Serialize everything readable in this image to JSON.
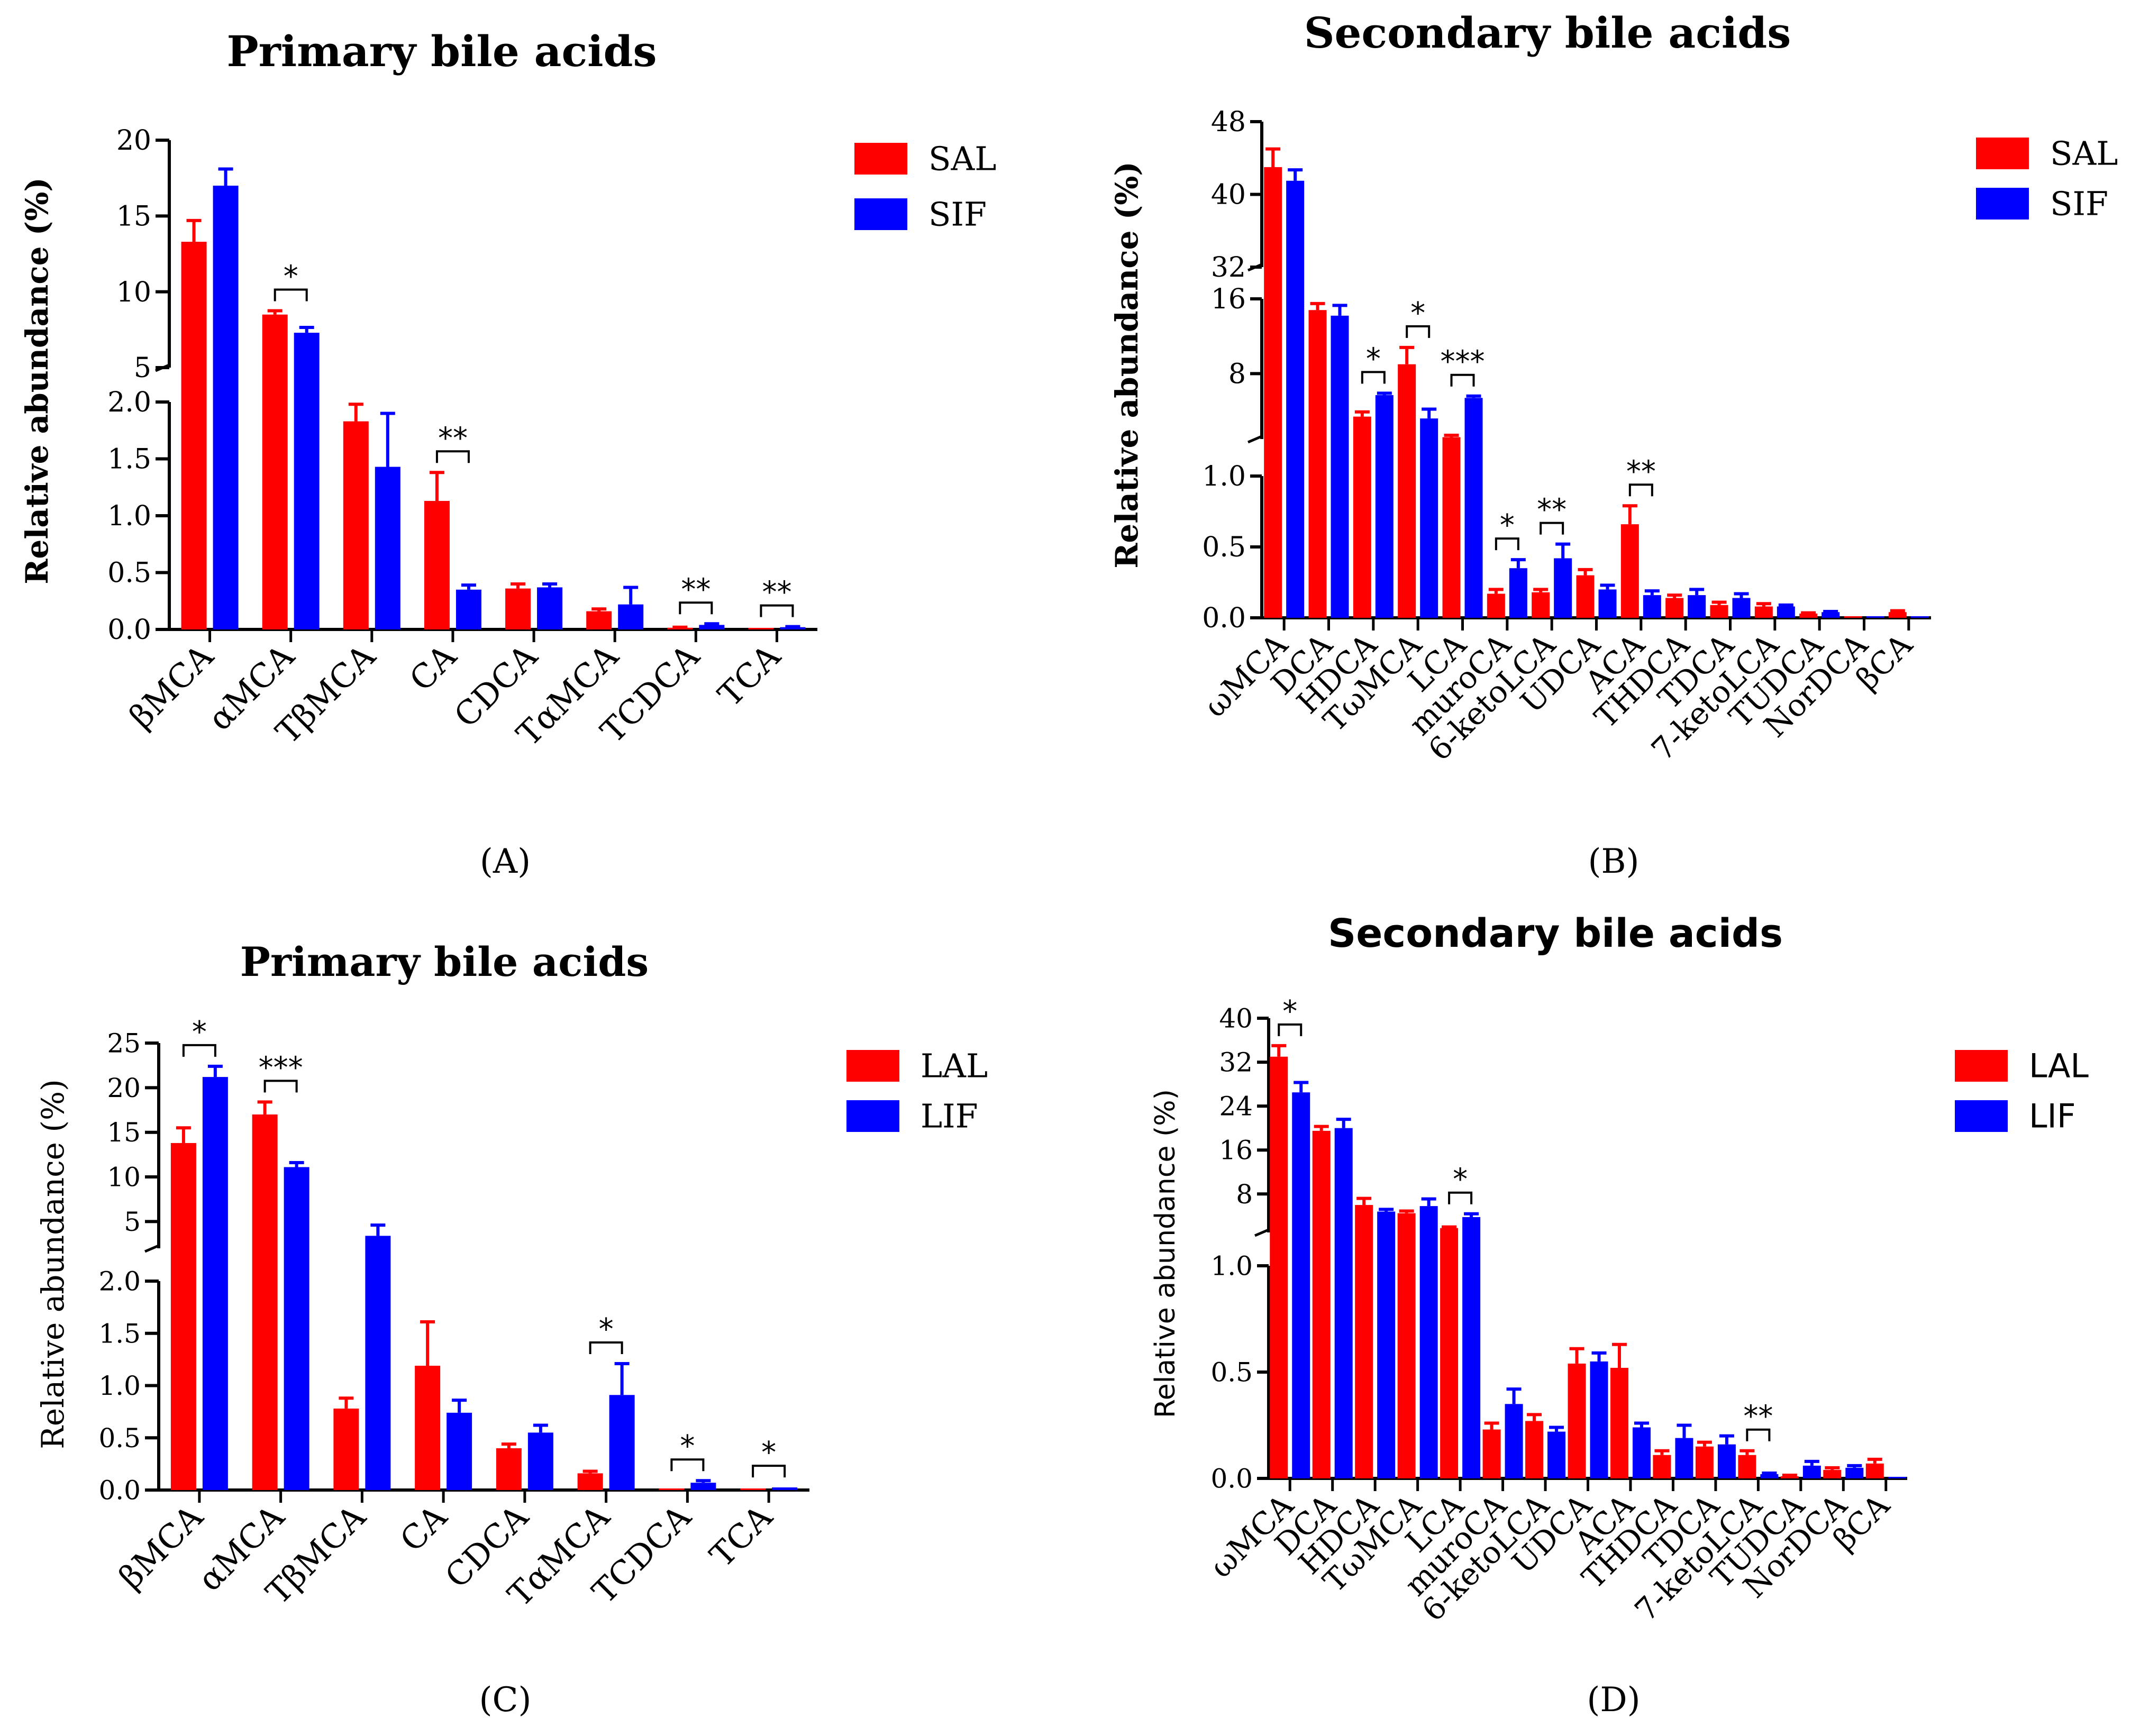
{
  "colors": {
    "red": "#ff0000",
    "blue": "#0000ff",
    "axis": "#000000"
  },
  "chart_data": [
    {
      "type": "bar",
      "panel_label": "(A)",
      "title": "Primary bile acids",
      "ylabel": "Relative abundance (%)",
      "xlabel": "",
      "categories": [
        "βMCA",
        "αMCA",
        "TβMCA",
        "CA",
        "CDCA",
        "TαMCA",
        "TCDCA",
        "TCA"
      ],
      "series": [
        {
          "name": "SAL",
          "color": "#ff0000",
          "values": [
            13.3,
            8.5,
            1.83,
            1.13,
            0.36,
            0.16,
            0.015,
            0.008
          ],
          "errors": [
            1.4,
            0.25,
            0.15,
            0.25,
            0.04,
            0.02,
            0.005,
            0.003
          ]
        },
        {
          "name": "SIF",
          "color": "#0000ff",
          "values": [
            17.0,
            7.3,
            1.43,
            0.35,
            0.37,
            0.22,
            0.04,
            0.02
          ],
          "errors": [
            1.1,
            0.35,
            0.47,
            0.04,
            0.03,
            0.15,
            0.01,
            0.005
          ]
        }
      ],
      "ylim": [
        0,
        20
      ],
      "axis_segments": [
        {
          "range": [
            0,
            2.0
          ],
          "ticks": [
            "0.0",
            "0.5",
            "1.0",
            "1.5",
            "2.0"
          ]
        },
        {
          "range": [
            5,
            20
          ],
          "ticks": [
            "5",
            "10",
            "15",
            "20"
          ]
        }
      ],
      "legend": "right",
      "significance": [
        {
          "category": "αMCA",
          "label": "*"
        },
        {
          "category": "CA",
          "label": "**"
        },
        {
          "category": "TCDCA",
          "label": "**"
        },
        {
          "category": "TCA",
          "label": "**"
        }
      ]
    },
    {
      "type": "bar",
      "panel_label": "(B)",
      "title": "Secondary bile acids",
      "ylabel": "Relative abundance (%)",
      "xlabel": "",
      "categories": [
        "ωMCA",
        "DCA",
        "HDCA",
        "TωMCA",
        "LCA",
        "muroCA",
        "6-ketoLCA",
        "UDCA",
        "ACA",
        "THDCA",
        "TDCA",
        "7-ketoLCA",
        "TUDCA",
        "NorDCA",
        "βCA"
      ],
      "series": [
        {
          "name": "SAL",
          "color": "#ff0000",
          "values": [
            43.0,
            14.8,
            3.4,
            9.0,
            1.2,
            0.17,
            0.18,
            0.3,
            0.66,
            0.14,
            0.09,
            0.08,
            0.03,
            0.005,
            0.04
          ],
          "errors": [
            2.0,
            0.7,
            0.5,
            1.8,
            0.2,
            0.03,
            0.02,
            0.04,
            0.13,
            0.02,
            0.02,
            0.02,
            0.005,
            0.002,
            0.01
          ]
        },
        {
          "name": "SIF",
          "color": "#0000ff",
          "values": [
            41.5,
            14.2,
            5.7,
            3.2,
            5.4,
            0.35,
            0.42,
            0.2,
            0.16,
            0.16,
            0.14,
            0.08,
            0.04,
            0.005,
            0.005
          ],
          "errors": [
            1.2,
            1.1,
            0.2,
            1.0,
            0.2,
            0.06,
            0.1,
            0.03,
            0.03,
            0.04,
            0.03,
            0.01,
            0.005,
            0.002,
            0.002
          ]
        }
      ],
      "ylim": [
        0,
        48
      ],
      "axis_segments": [
        {
          "range": [
            0,
            1.0
          ],
          "ticks": [
            "0.0",
            "0.5",
            "1.0"
          ]
        },
        {
          "range": [
            1,
            16
          ],
          "ticks": [
            "8",
            "16"
          ]
        },
        {
          "range": [
            32,
            48
          ],
          "ticks": [
            "32",
            "40",
            "48"
          ]
        }
      ],
      "legend": "right",
      "significance": [
        {
          "category": "HDCA",
          "label": "*"
        },
        {
          "category": "TωMCA",
          "label": "*"
        },
        {
          "category": "LCA",
          "label": "***"
        },
        {
          "category": "muroCA",
          "label": "*"
        },
        {
          "category": "6-ketoLCA",
          "label": "**"
        },
        {
          "category": "ACA",
          "label": "**"
        }
      ]
    },
    {
      "type": "bar",
      "panel_label": "(C)",
      "title": "Primary bile acids",
      "ylabel": "Relative abundance (%)",
      "xlabel": "",
      "categories": [
        "βMCA",
        "αMCA",
        "TβMCA",
        "CA",
        "CDCA",
        "TαMCA",
        "TCDCA",
        "TCA"
      ],
      "series": [
        {
          "name": "LAL",
          "color": "#ff0000",
          "values": [
            13.8,
            17.0,
            0.78,
            1.19,
            0.4,
            0.16,
            0.015,
            0.008
          ],
          "errors": [
            1.7,
            1.4,
            0.1,
            0.42,
            0.04,
            0.02,
            0.005,
            0.003
          ]
        },
        {
          "name": "LIF",
          "color": "#0000ff",
          "values": [
            21.2,
            11.1,
            3.4,
            0.74,
            0.55,
            0.91,
            0.07,
            0.025
          ],
          "errors": [
            1.2,
            0.5,
            1.2,
            0.12,
            0.07,
            0.3,
            0.02,
            0.005
          ]
        }
      ],
      "ylim": [
        0,
        25
      ],
      "axis_segments": [
        {
          "range": [
            0,
            2.0
          ],
          "ticks": [
            "0.0",
            "0.5",
            "1.0",
            "1.5",
            "2.0"
          ]
        },
        {
          "range": [
            2,
            25
          ],
          "ticks": [
            "5",
            "10",
            "15",
            "20",
            "25"
          ]
        }
      ],
      "legend": "right",
      "significance": [
        {
          "category": "βMCA",
          "label": "*"
        },
        {
          "category": "αMCA",
          "label": "***"
        },
        {
          "category": "TαMCA",
          "label": "*"
        },
        {
          "category": "TCDCA",
          "label": "*"
        },
        {
          "category": "TCA",
          "label": "*"
        }
      ]
    },
    {
      "type": "bar",
      "panel_label": "(D)",
      "title": "Secondary bile acids",
      "ylabel": "Relative abundance (%)",
      "xlabel": "",
      "categories": [
        "ωMCA",
        "DCA",
        "HDCA",
        "TωMCA",
        "LCA",
        "muroCA",
        "6-ketoLCA",
        "UDCA",
        "ACA",
        "THDCA",
        "TDCA",
        "7-ketoLCA",
        "TUDCA",
        "NorDCA",
        "βCA"
      ],
      "series": [
        {
          "name": "LAL",
          "color": "#ff0000",
          "values": [
            33.0,
            19.5,
            6.0,
            4.5,
            1.8,
            0.23,
            0.27,
            0.54,
            0.52,
            0.11,
            0.15,
            0.11,
            0.01,
            0.04,
            0.07
          ],
          "errors": [
            2.0,
            0.8,
            1.2,
            0.4,
            0.2,
            0.03,
            0.03,
            0.07,
            0.11,
            0.02,
            0.02,
            0.02,
            0.005,
            0.01,
            0.02
          ]
        },
        {
          "name": "LIF",
          "color": "#0000ff",
          "values": [
            26.5,
            20.0,
            4.8,
            5.8,
            3.8,
            0.35,
            0.22,
            0.55,
            0.24,
            0.19,
            0.16,
            0.02,
            0.06,
            0.05,
            0.005
          ],
          "errors": [
            1.8,
            1.6,
            0.4,
            1.3,
            0.6,
            0.07,
            0.02,
            0.04,
            0.02,
            0.06,
            0.04,
            0.005,
            0.02,
            0.01,
            0.002
          ]
        }
      ],
      "ylim": [
        0,
        40
      ],
      "axis_segments": [
        {
          "range": [
            0,
            1.0
          ],
          "ticks": [
            "0.0",
            "0.5",
            "1.0"
          ]
        },
        {
          "range": [
            1,
            40
          ],
          "ticks": [
            "8",
            "16",
            "24",
            "32",
            "40"
          ]
        }
      ],
      "legend": "right",
      "significance": [
        {
          "category": "ωMCA",
          "label": "*"
        },
        {
          "category": "LCA",
          "label": "*"
        },
        {
          "category": "7-ketoLCA",
          "label": "**"
        }
      ]
    }
  ]
}
